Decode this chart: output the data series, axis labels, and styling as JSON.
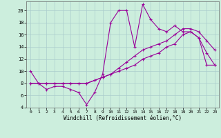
{
  "xlabel": "Windchill (Refroidissement éolien,°C)",
  "bg_color": "#cceedd",
  "grid_color": "#aacccc",
  "line_color": "#990099",
  "xlim": [
    -0.5,
    23.5
  ],
  "ylim": [
    4,
    21.5
  ],
  "xticks": [
    0,
    1,
    2,
    3,
    4,
    5,
    6,
    7,
    8,
    9,
    10,
    11,
    12,
    13,
    14,
    15,
    16,
    17,
    18,
    19,
    20,
    21,
    22,
    23
  ],
  "yticks": [
    4,
    6,
    8,
    10,
    12,
    14,
    16,
    18,
    20
  ],
  "line1_x": [
    0,
    1,
    2,
    3,
    4,
    5,
    6,
    7,
    8,
    9,
    10,
    11,
    12,
    13,
    14,
    15,
    16,
    17,
    18,
    19,
    20,
    21,
    22,
    23
  ],
  "line1_y": [
    10,
    8,
    7,
    7.5,
    7.5,
    7,
    6.5,
    4.5,
    6.5,
    9.5,
    18,
    20,
    20,
    14,
    21,
    18.5,
    17,
    16.5,
    17.5,
    16.5,
    16.5,
    15.5,
    13,
    11
  ],
  "line2_x": [
    0,
    1,
    2,
    3,
    4,
    5,
    6,
    7,
    8,
    9,
    10,
    11,
    12,
    13,
    14,
    15,
    16,
    17,
    18,
    19,
    20,
    21,
    22,
    23
  ],
  "line2_y": [
    8,
    8,
    8,
    8,
    8,
    8,
    8,
    8,
    8.5,
    9,
    9.5,
    10,
    10.5,
    11,
    12,
    12.5,
    13,
    14,
    14.5,
    16,
    16.5,
    15.5,
    11,
    11
  ],
  "line3_x": [
    0,
    1,
    2,
    3,
    4,
    5,
    6,
    7,
    8,
    9,
    10,
    11,
    12,
    13,
    14,
    15,
    16,
    17,
    18,
    19,
    20,
    21,
    22,
    23
  ],
  "line3_y": [
    8,
    8,
    8,
    8,
    8,
    8,
    8,
    8,
    8.5,
    9,
    9.5,
    10.5,
    11.5,
    12.5,
    13.5,
    14,
    14.5,
    15,
    16,
    17,
    17,
    16.5,
    15,
    13.5
  ]
}
